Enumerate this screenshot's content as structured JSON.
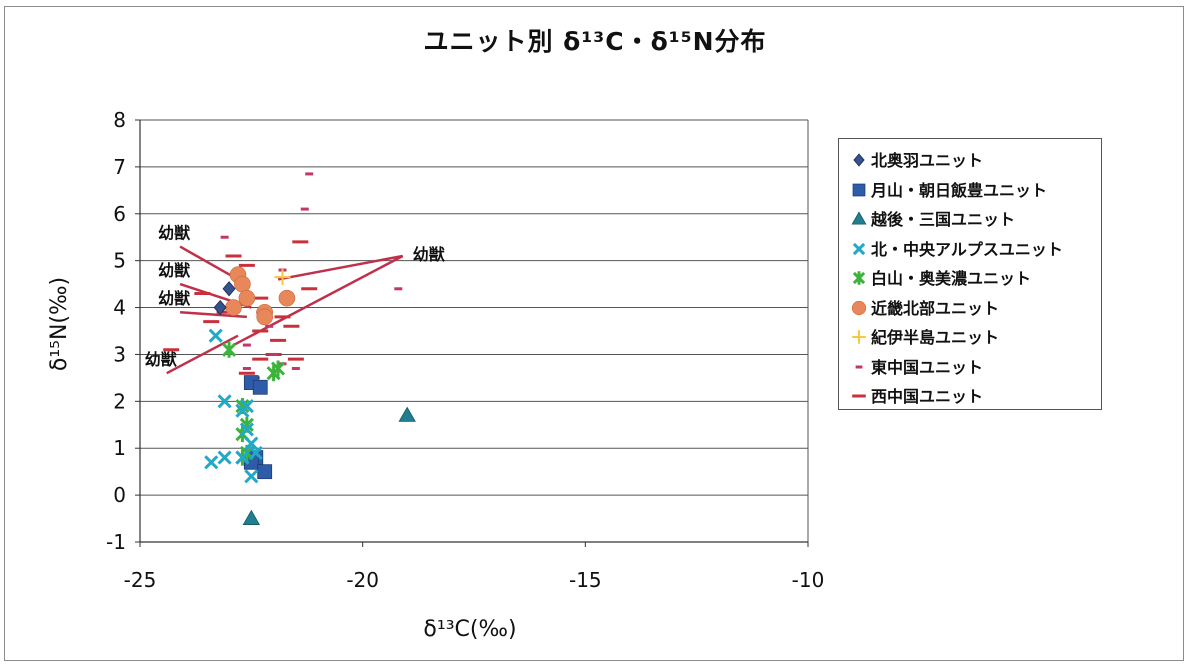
{
  "title": "ユニット別 δ¹³C・δ¹⁵N分布",
  "chart_data": {
    "type": "scatter",
    "title": "ユニット別 δ¹³C・δ¹⁵N分布",
    "xlabel": "δ¹³C(‰)",
    "ylabel": "δ¹⁵N(‰)",
    "xlim": [
      -25,
      -10
    ],
    "ylim": [
      -1,
      8
    ],
    "xticks": [
      -25,
      -20,
      -15,
      -10
    ],
    "yticks": [
      -1,
      0,
      1,
      2,
      3,
      4,
      5,
      6,
      7,
      8
    ],
    "grid": "horizontal",
    "legend_position": "right",
    "series": [
      {
        "name": "北奥羽ユニット",
        "marker": "diamond",
        "color": "#34528c",
        "points": [
          [
            -23.2,
            4.0
          ],
          [
            -23.0,
            4.4
          ]
        ]
      },
      {
        "name": "月山・朝日飯豊ユニット",
        "marker": "square",
        "color": "#2e5ca8",
        "points": [
          [
            -22.5,
            2.4
          ],
          [
            -22.3,
            2.3
          ],
          [
            -22.4,
            0.8
          ],
          [
            -22.5,
            0.7
          ],
          [
            -22.2,
            0.5
          ]
        ]
      },
      {
        "name": "越後・三国ユニット",
        "marker": "triangle",
        "color": "#1f7f8f",
        "points": [
          [
            -19.0,
            1.7
          ],
          [
            -22.5,
            -0.5
          ]
        ]
      },
      {
        "name": "北・中央アルプスユニット",
        "marker": "x",
        "color": "#22a8c8",
        "points": [
          [
            -23.3,
            3.4
          ],
          [
            -23.1,
            2.0
          ],
          [
            -22.7,
            1.8
          ],
          [
            -22.6,
            1.9
          ],
          [
            -22.5,
            1.1
          ],
          [
            -22.6,
            1.4
          ],
          [
            -22.4,
            0.9
          ],
          [
            -22.7,
            0.8
          ],
          [
            -23.1,
            0.8
          ],
          [
            -23.4,
            0.7
          ],
          [
            -22.5,
            0.4
          ]
        ]
      },
      {
        "name": "白山・奥美濃ユニット",
        "marker": "asterisk",
        "color": "#3cb43c",
        "points": [
          [
            -23.0,
            3.1
          ],
          [
            -22.7,
            1.9
          ],
          [
            -22.6,
            1.5
          ],
          [
            -22.7,
            1.3
          ],
          [
            -22.6,
            0.9
          ],
          [
            -22.7,
            0.8
          ],
          [
            -21.9,
            2.7
          ],
          [
            -22.0,
            2.6
          ]
        ]
      },
      {
        "name": "近畿北部ユニット",
        "marker": "circle",
        "color": "#e8885a",
        "points": [
          [
            -22.8,
            4.7
          ],
          [
            -22.7,
            4.5
          ],
          [
            -22.6,
            4.2
          ],
          [
            -22.9,
            4.0
          ],
          [
            -22.2,
            3.9
          ],
          [
            -22.2,
            3.8
          ],
          [
            -21.7,
            4.2
          ]
        ]
      },
      {
        "name": "紀伊半島ユニット",
        "marker": "plus",
        "color": "#f5c842",
        "points": [
          [
            -21.8,
            4.65
          ]
        ]
      },
      {
        "name": "東中国ユニット",
        "marker": "short-dash",
        "color": "#c0386a",
        "points": [
          [
            -21.2,
            6.85
          ],
          [
            -21.3,
            6.1
          ],
          [
            -23.1,
            5.5
          ],
          [
            -21.8,
            4.8
          ],
          [
            -19.2,
            4.4
          ],
          [
            -22.3,
            3.9
          ],
          [
            -22.1,
            3.6
          ],
          [
            -22.6,
            3.2
          ],
          [
            -22.0,
            3.0
          ],
          [
            -21.8,
            2.8
          ],
          [
            -21.5,
            2.7
          ],
          [
            -22.6,
            2.7
          ],
          [
            -22.4,
            2.5
          ]
        ]
      },
      {
        "name": "西中国ユニット",
        "marker": "long-dash",
        "color": "#c8303c",
        "points": [
          [
            -21.4,
            5.4
          ],
          [
            -22.9,
            5.1
          ],
          [
            -22.6,
            4.9
          ],
          [
            -21.2,
            4.4
          ],
          [
            -23.6,
            4.3
          ],
          [
            -22.3,
            4.2
          ],
          [
            -23.1,
            3.9
          ],
          [
            -23.4,
            3.7
          ],
          [
            -21.8,
            3.8
          ],
          [
            -21.6,
            3.6
          ],
          [
            -21.9,
            3.3
          ],
          [
            -22.3,
            3.5
          ],
          [
            -24.3,
            3.1
          ],
          [
            -22.0,
            3.0
          ],
          [
            -22.3,
            2.9
          ],
          [
            -21.5,
            2.9
          ],
          [
            -22.6,
            2.6
          ]
        ]
      }
    ],
    "annotations": [
      {
        "text": "幼獣",
        "line_from": [
          -24.1,
          5.3
        ],
        "line_to": [
          -22.8,
          4.6
        ]
      },
      {
        "text": "幼獣",
        "line_from": [
          -24.1,
          4.5
        ],
        "line_to": [
          -22.5,
          4.0
        ]
      },
      {
        "text": "幼獣",
        "line_from": [
          -24.1,
          3.9
        ],
        "line_to": [
          -22.6,
          3.8
        ]
      },
      {
        "text": "幼獣",
        "line_from": [
          -24.4,
          2.6
        ],
        "line_to": [
          -22.8,
          3.4
        ]
      },
      {
        "text": "幼獣",
        "line_from": [
          -19.1,
          5.1
        ],
        "line_to": [
          -22.9,
          3.2
        ]
      },
      {
        "text": "",
        "line_from": [
          -19.1,
          5.1
        ],
        "line_to": [
          -21.9,
          4.6
        ]
      }
    ]
  },
  "colors": {
    "gridline": "#555555",
    "annotation_line": "#c0304a"
  }
}
